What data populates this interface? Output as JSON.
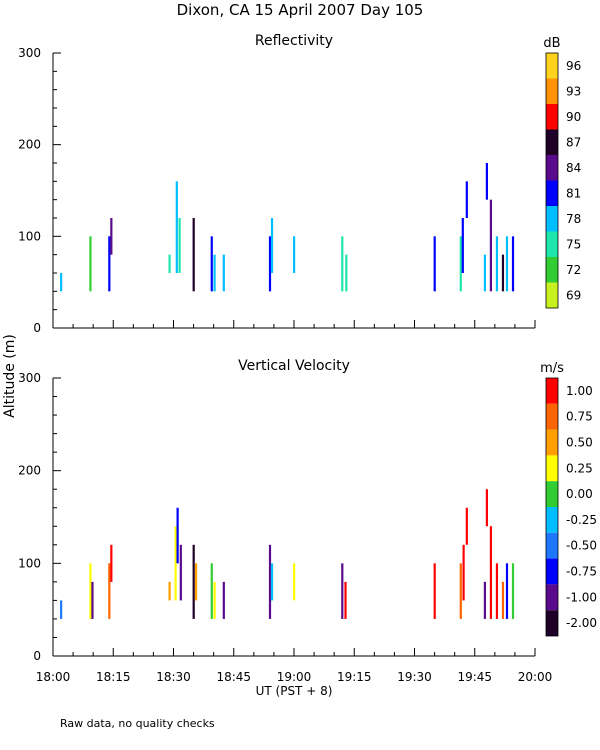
{
  "title": "Dixon, CA 15 April 2007  Day 105",
  "ylabel": "Altitude (m)",
  "xlabel": "UT  (PST + 8)",
  "footnote": "Raw data, no quality checks",
  "x_ticks": [
    "18:00",
    "18:15",
    "18:30",
    "18:45",
    "19:00",
    "19:15",
    "19:30",
    "19:45",
    "20:00"
  ],
  "x_range_min": [
    0,
    120
  ],
  "y_ticks": [
    "0",
    "100",
    "200",
    "300"
  ],
  "y_range": [
    0,
    300
  ],
  "chart_data": [
    {
      "type": "heatmap",
      "title": "Reflectivity",
      "unit": "dB",
      "colorbar_labels": [
        "96",
        "93",
        "90",
        "87",
        "84",
        "81",
        "78",
        "75",
        "72",
        "69"
      ],
      "colorbar_colors": [
        "#ffd21e",
        "#ff9200",
        "#ff0000",
        "#1e0028",
        "#5a0a8c",
        "#0000ff",
        "#00bfff",
        "#1ee6aa",
        "#32cd32",
        "#c8f01e"
      ],
      "ylim": [
        0,
        300
      ],
      "echoes": [
        {
          "t": 2.0,
          "bottom": 40,
          "top": 60,
          "color": "#00bfff"
        },
        {
          "t": 9.3,
          "bottom": 40,
          "top": 100,
          "color": "#32cd32"
        },
        {
          "t": 14.0,
          "bottom": 40,
          "top": 100,
          "color": "#0000ff"
        },
        {
          "t": 14.5,
          "bottom": 80,
          "top": 120,
          "color": "#5a0a8c"
        },
        {
          "t": 29.0,
          "bottom": 60,
          "top": 80,
          "color": "#1ee6aa"
        },
        {
          "t": 30.8,
          "bottom": 60,
          "top": 160,
          "color": "#00bfff"
        },
        {
          "t": 31.5,
          "bottom": 60,
          "top": 120,
          "color": "#1ee6aa"
        },
        {
          "t": 35.0,
          "bottom": 40,
          "top": 120,
          "color": "#1e0028"
        },
        {
          "t": 39.5,
          "bottom": 40,
          "top": 100,
          "color": "#0000ff"
        },
        {
          "t": 40.2,
          "bottom": 40,
          "top": 80,
          "color": "#00bfff"
        },
        {
          "t": 42.5,
          "bottom": 40,
          "top": 80,
          "color": "#00bfff"
        },
        {
          "t": 54.0,
          "bottom": 40,
          "top": 100,
          "color": "#0000ff"
        },
        {
          "t": 54.5,
          "bottom": 60,
          "top": 120,
          "color": "#00bfff"
        },
        {
          "t": 60.0,
          "bottom": 60,
          "top": 100,
          "color": "#00bfff"
        },
        {
          "t": 72.0,
          "bottom": 40,
          "top": 100,
          "color": "#1ee6aa"
        },
        {
          "t": 73.0,
          "bottom": 40,
          "top": 80,
          "color": "#1ee6aa"
        },
        {
          "t": 95.0,
          "bottom": 40,
          "top": 100,
          "color": "#0000ff"
        },
        {
          "t": 101.5,
          "bottom": 40,
          "top": 100,
          "color": "#1ee6aa"
        },
        {
          "t": 102.0,
          "bottom": 60,
          "top": 120,
          "color": "#0000ff"
        },
        {
          "t": 103.0,
          "bottom": 120,
          "top": 160,
          "color": "#0000ff"
        },
        {
          "t": 107.5,
          "bottom": 40,
          "top": 80,
          "color": "#00bfff"
        },
        {
          "t": 108.0,
          "bottom": 140,
          "top": 180,
          "color": "#0000ff"
        },
        {
          "t": 109.0,
          "bottom": 40,
          "top": 140,
          "color": "#5a0a8c"
        },
        {
          "t": 110.5,
          "bottom": 40,
          "top": 100,
          "color": "#00bfff"
        },
        {
          "t": 112.0,
          "bottom": 40,
          "top": 80,
          "color": "#1e0028"
        },
        {
          "t": 113.0,
          "bottom": 40,
          "top": 100,
          "color": "#00bfff"
        },
        {
          "t": 114.5,
          "bottom": 40,
          "top": 100,
          "color": "#0000ff"
        }
      ]
    },
    {
      "type": "heatmap",
      "title": "Vertical Velocity",
      "unit": "m/s",
      "colorbar_labels": [
        "1.00",
        "0.75",
        "0.50",
        "0.25",
        "0.00",
        "-0.25",
        "-0.50",
        "-0.75",
        "-1.00",
        "-2.00"
      ],
      "colorbar_colors": [
        "#ff0000",
        "#ff6400",
        "#ffa000",
        "#ffff00",
        "#32cd32",
        "#00bfff",
        "#1e78ff",
        "#0000ff",
        "#5a0a8c",
        "#1e0028"
      ],
      "ylim": [
        0,
        300
      ],
      "echoes": [
        {
          "t": 2.0,
          "bottom": 40,
          "top": 60,
          "color": "#1e78ff"
        },
        {
          "t": 9.3,
          "bottom": 40,
          "top": 100,
          "color": "#ffff00"
        },
        {
          "t": 9.8,
          "bottom": 40,
          "top": 80,
          "color": "#5a0a8c"
        },
        {
          "t": 14.0,
          "bottom": 40,
          "top": 100,
          "color": "#ff6400"
        },
        {
          "t": 14.5,
          "bottom": 80,
          "top": 120,
          "color": "#ff0000"
        },
        {
          "t": 29.0,
          "bottom": 60,
          "top": 80,
          "color": "#ffa000"
        },
        {
          "t": 30.5,
          "bottom": 60,
          "top": 140,
          "color": "#ffff00"
        },
        {
          "t": 31.0,
          "bottom": 100,
          "top": 160,
          "color": "#0000ff"
        },
        {
          "t": 31.8,
          "bottom": 60,
          "top": 120,
          "color": "#5a0a8c"
        },
        {
          "t": 35.0,
          "bottom": 40,
          "top": 120,
          "color": "#1e0028"
        },
        {
          "t": 35.6,
          "bottom": 60,
          "top": 100,
          "color": "#ffa000"
        },
        {
          "t": 39.5,
          "bottom": 40,
          "top": 100,
          "color": "#32cd32"
        },
        {
          "t": 40.2,
          "bottom": 40,
          "top": 80,
          "color": "#ffff00"
        },
        {
          "t": 42.5,
          "bottom": 40,
          "top": 80,
          "color": "#5a0a8c"
        },
        {
          "t": 54.0,
          "bottom": 40,
          "top": 120,
          "color": "#5a0a8c"
        },
        {
          "t": 54.5,
          "bottom": 60,
          "top": 100,
          "color": "#00bfff"
        },
        {
          "t": 60.0,
          "bottom": 60,
          "top": 100,
          "color": "#ffff00"
        },
        {
          "t": 72.0,
          "bottom": 40,
          "top": 100,
          "color": "#5a0a8c"
        },
        {
          "t": 72.8,
          "bottom": 40,
          "top": 80,
          "color": "#ff0000"
        },
        {
          "t": 95.0,
          "bottom": 40,
          "top": 100,
          "color": "#ff0000"
        },
        {
          "t": 101.5,
          "bottom": 40,
          "top": 100,
          "color": "#ff6400"
        },
        {
          "t": 102.2,
          "bottom": 60,
          "top": 120,
          "color": "#ff0000"
        },
        {
          "t": 103.0,
          "bottom": 120,
          "top": 160,
          "color": "#ff0000"
        },
        {
          "t": 107.5,
          "bottom": 40,
          "top": 80,
          "color": "#5a0a8c"
        },
        {
          "t": 108.0,
          "bottom": 140,
          "top": 180,
          "color": "#ff0000"
        },
        {
          "t": 109.0,
          "bottom": 40,
          "top": 140,
          "color": "#ff0000"
        },
        {
          "t": 110.5,
          "bottom": 40,
          "top": 100,
          "color": "#ff0000"
        },
        {
          "t": 112.0,
          "bottom": 40,
          "top": 80,
          "color": "#ff6400"
        },
        {
          "t": 113.0,
          "bottom": 40,
          "top": 100,
          "color": "#0000ff"
        },
        {
          "t": 114.5,
          "bottom": 40,
          "top": 100,
          "color": "#32cd32"
        }
      ]
    }
  ]
}
